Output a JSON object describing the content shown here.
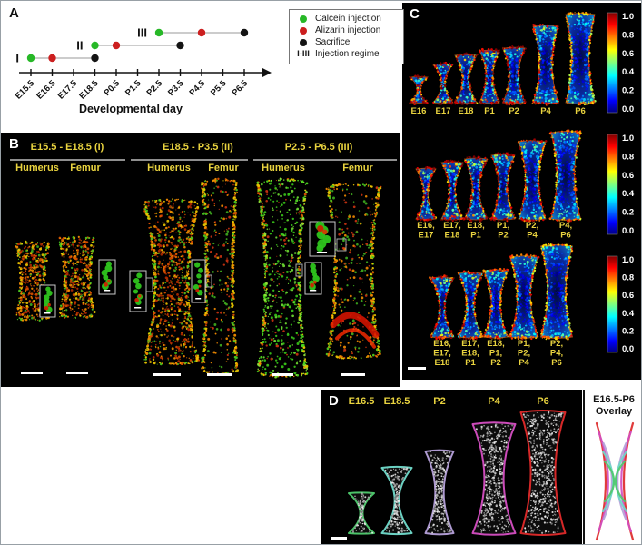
{
  "figure": {
    "panel_a_label": "A",
    "panel_b_label": "B",
    "panel_c_label": "C",
    "panel_d_label": "D"
  },
  "timeline": {
    "xlabel": "Developmental day",
    "ticks": [
      "E15.5",
      "E16.5",
      "E17.5",
      "E18.5",
      "P0.5",
      "P1.5",
      "P2.5",
      "P3.5",
      "P4.5",
      "P5.5",
      "P6.5"
    ],
    "legend": [
      {
        "label": "Calcein injection",
        "marker": "dot",
        "color": "#27b827"
      },
      {
        "label": "Alizarin injection",
        "marker": "dot",
        "color": "#cc1f1f"
      },
      {
        "label": "Sacrifice",
        "marker": "dot",
        "color": "#141414"
      },
      {
        "label": "Injection regime",
        "marker": "text",
        "symbol": "I-III",
        "color": "#141414"
      }
    ],
    "regimes": [
      {
        "label": "I",
        "calcein": "E15.5",
        "alizarin": "E16.5",
        "sacrifice": "E18.5"
      },
      {
        "label": "II",
        "calcein": "E18.5",
        "alizarin": "P0.5",
        "sacrifice": "P3.5"
      },
      {
        "label": "III",
        "calcein": "P2.5",
        "alizarin": "P4.5",
        "sacrifice": "P6.5"
      }
    ]
  },
  "panelB": {
    "groups": [
      {
        "title": "E15.5 - E18.5 (I)",
        "columns": [
          "Humerus",
          "Femur"
        ]
      },
      {
        "title": "E18.5 - P3.5 (II)",
        "columns": [
          "Humerus",
          "Femur"
        ]
      },
      {
        "title": "P2.5 - P6.5 (III)",
        "columns": [
          "Humerus",
          "Femur"
        ]
      }
    ]
  },
  "panelC": {
    "colorbar_ticks": [
      "1.0",
      "0.8",
      "0.6",
      "0.4",
      "0.2",
      "0.0"
    ],
    "rows": [
      {
        "specimens": [
          [
            "E16"
          ],
          [
            "E17"
          ],
          [
            "E18"
          ],
          [
            "P1"
          ],
          [
            "P2"
          ],
          [
            "P4"
          ],
          [
            "P6"
          ]
        ]
      },
      {
        "specimens": [
          [
            "E16,",
            "E17"
          ],
          [
            "E17,",
            "E18"
          ],
          [
            "E18,",
            "P1"
          ],
          [
            "P1,",
            "P2"
          ],
          [
            "P2,",
            "P4"
          ],
          [
            "P4,",
            "P6"
          ]
        ]
      },
      {
        "specimens": [
          [
            "E16,",
            "E17,",
            "E18"
          ],
          [
            "E17,",
            "E18,",
            "P1"
          ],
          [
            "E18,",
            "P1,",
            "P2"
          ],
          [
            "P1,",
            "P2,",
            "P4"
          ],
          [
            "P2,",
            "P4,",
            "P6"
          ]
        ]
      }
    ]
  },
  "panelD": {
    "specimens": [
      {
        "label": "E16.5",
        "color": "#4fc96d"
      },
      {
        "label": "E18.5",
        "color": "#6fd8c9"
      },
      {
        "label": "P2",
        "color": "#b49fd8"
      },
      {
        "label": "P4",
        "color": "#d34ec0"
      },
      {
        "label": "P6",
        "color": "#dd2a2a"
      }
    ],
    "overlay_title": [
      "E16.5-P6",
      "Overlay"
    ]
  }
}
